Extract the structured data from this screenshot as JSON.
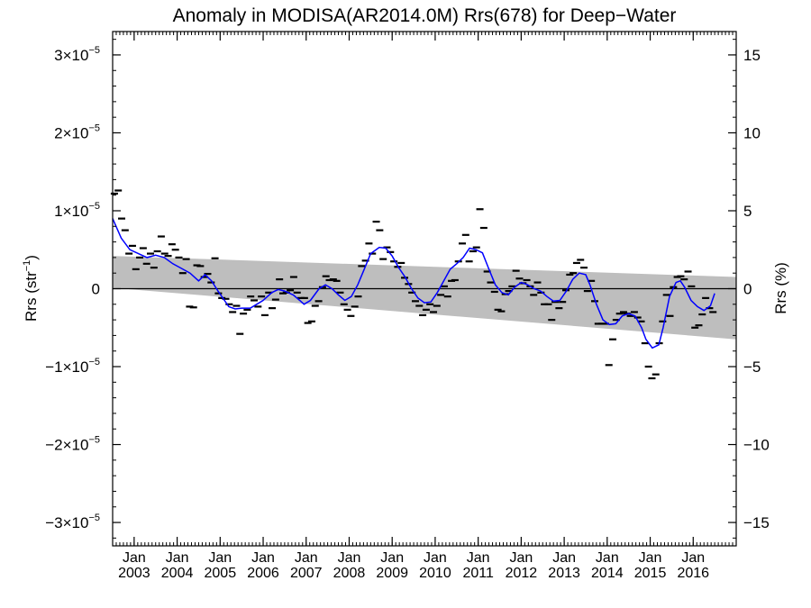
{
  "chart_data": {
    "type": "line",
    "title": "Anomaly in MODISA(AR2014.0M) Rrs(678) for Deep−Water",
    "ylabel": "Rrs (str",
    "ylabel_sup": "−1",
    "ylabel_suffix": ")",
    "y2label": "Rrs (%)",
    "xlim": [
      2002.5,
      2017.0
    ],
    "ylim": [
      -3.3e-05,
      3.3e-05
    ],
    "y2lim": [
      -16.5,
      16.5
    ],
    "y_ticks": [
      {
        "value": 3e-05,
        "mant": "3×10",
        "exp": "−5"
      },
      {
        "value": 2e-05,
        "mant": "2×10",
        "exp": "−5"
      },
      {
        "value": 1e-05,
        "mant": "1×10",
        "exp": "−5"
      },
      {
        "value": 0,
        "mant": "0",
        "exp": ""
      },
      {
        "value": -1e-05,
        "mant": "−1×10",
        "exp": "−5"
      },
      {
        "value": -2e-05,
        "mant": "−2×10",
        "exp": "−5"
      },
      {
        "value": -3e-05,
        "mant": "−3×10",
        "exp": "−5"
      }
    ],
    "y2_ticks": [
      {
        "value": 15,
        "label": "15"
      },
      {
        "value": 10,
        "label": "10"
      },
      {
        "value": 5,
        "label": "5"
      },
      {
        "value": 0,
        "label": "0"
      },
      {
        "value": -5,
        "label": "−5"
      },
      {
        "value": -10,
        "label": "−10"
      },
      {
        "value": -15,
        "label": "−15"
      }
    ],
    "x_ticks": [
      {
        "value": 2003.0,
        "month": "Jan",
        "year": "2003"
      },
      {
        "value": 2004.0,
        "month": "Jan",
        "year": "2004"
      },
      {
        "value": 2005.0,
        "month": "Jan",
        "year": "2005"
      },
      {
        "value": 2006.0,
        "month": "Jan",
        "year": "2006"
      },
      {
        "value": 2007.0,
        "month": "Jan",
        "year": "2007"
      },
      {
        "value": 2008.0,
        "month": "Jan",
        "year": "2008"
      },
      {
        "value": 2009.0,
        "month": "Jan",
        "year": "2009"
      },
      {
        "value": 2010.0,
        "month": "Jan",
        "year": "2010"
      },
      {
        "value": 2011.0,
        "month": "Jan",
        "year": "2011"
      },
      {
        "value": 2012.0,
        "month": "Jan",
        "year": "2012"
      },
      {
        "value": 2013.0,
        "month": "Jan",
        "year": "2013"
      },
      {
        "value": 2014.0,
        "month": "Jan",
        "year": "2014"
      },
      {
        "value": 2015.0,
        "month": "Jan",
        "year": "2015"
      },
      {
        "value": 2016.0,
        "month": "Jan",
        "year": "2016"
      }
    ],
    "zero_line": 0,
    "band": {
      "x": [
        2002.5,
        2017.0
      ],
      "upper": [
        4.2e-06,
        1.5e-06
      ],
      "lower": [
        1e-07,
        -6.5e-06
      ],
      "color": "#bebebe"
    },
    "series": [
      {
        "type": "scatter",
        "color": "#000000",
        "points": [
          [
            2002.54,
            12.2
          ],
          [
            2002.63,
            12.6
          ],
          [
            2002.71,
            9.0
          ],
          [
            2002.79,
            7.5
          ],
          [
            2002.88,
            4.5
          ],
          [
            2002.96,
            5.5
          ],
          [
            2003.04,
            2.5
          ],
          [
            2003.13,
            4.0
          ],
          [
            2003.21,
            5.2
          ],
          [
            2003.29,
            3.2
          ],
          [
            2003.38,
            4.5
          ],
          [
            2003.46,
            2.7
          ],
          [
            2003.54,
            4.8
          ],
          [
            2003.63,
            6.7
          ],
          [
            2003.71,
            4.5
          ],
          [
            2003.79,
            4.2
          ],
          [
            2003.88,
            5.7
          ],
          [
            2003.96,
            5.0
          ],
          [
            2004.04,
            4.0
          ],
          [
            2004.13,
            2.0
          ],
          [
            2004.21,
            3.8
          ],
          [
            2004.29,
            -2.3
          ],
          [
            2004.38,
            -2.4
          ],
          [
            2004.46,
            3.0
          ],
          [
            2004.54,
            2.9
          ],
          [
            2004.63,
            1.5
          ],
          [
            2004.71,
            1.9
          ],
          [
            2004.79,
            0.8
          ],
          [
            2004.88,
            3.9
          ],
          [
            2004.96,
            -0.6
          ],
          [
            2005.04,
            -1.2
          ],
          [
            2005.13,
            -1.3
          ],
          [
            2005.21,
            -2.0
          ],
          [
            2005.29,
            -3.0
          ],
          [
            2005.38,
            -2.2
          ],
          [
            2005.46,
            -5.8
          ],
          [
            2005.54,
            -3.2
          ],
          [
            2005.63,
            -2.7
          ],
          [
            2005.71,
            -1.0
          ],
          [
            2005.79,
            -1.5
          ],
          [
            2005.88,
            -2.3
          ],
          [
            2005.96,
            -1.0
          ],
          [
            2006.04,
            -3.4
          ],
          [
            2006.13,
            -0.5
          ],
          [
            2006.21,
            -2.5
          ],
          [
            2006.29,
            -1.4
          ],
          [
            2006.38,
            1.2
          ],
          [
            2006.46,
            -0.6
          ],
          [
            2006.54,
            -0.5
          ],
          [
            2006.63,
            -0.2
          ],
          [
            2006.71,
            1.5
          ],
          [
            2006.79,
            -0.5
          ],
          [
            2006.88,
            -1.2
          ],
          [
            2006.96,
            -1.2
          ],
          [
            2007.04,
            -4.4
          ],
          [
            2007.13,
            -4.2
          ],
          [
            2007.21,
            -2.2
          ],
          [
            2007.29,
            -1.6
          ],
          [
            2007.38,
            0.2
          ],
          [
            2007.46,
            1.6
          ],
          [
            2007.54,
            1.1
          ],
          [
            2007.63,
            1.2
          ],
          [
            2007.71,
            1.0
          ],
          [
            2007.79,
            -0.5
          ],
          [
            2007.88,
            -2.0
          ],
          [
            2007.96,
            -2.7
          ],
          [
            2008.04,
            -3.5
          ],
          [
            2008.13,
            -2.3
          ],
          [
            2008.21,
            -1.0
          ],
          [
            2008.29,
            2.9
          ],
          [
            2008.38,
            3.6
          ],
          [
            2008.46,
            5.8
          ],
          [
            2008.54,
            4.5
          ],
          [
            2008.63,
            8.6
          ],
          [
            2008.71,
            7.5
          ],
          [
            2008.79,
            3.8
          ],
          [
            2008.88,
            5.3
          ],
          [
            2008.96,
            4.7
          ],
          [
            2009.04,
            3.5
          ],
          [
            2009.13,
            2.8
          ],
          [
            2009.21,
            3.3
          ],
          [
            2009.29,
            1.4
          ],
          [
            2009.38,
            0.6
          ],
          [
            2009.46,
            -0.5
          ],
          [
            2009.54,
            -1.6
          ],
          [
            2009.63,
            -2.2
          ],
          [
            2009.71,
            -3.4
          ],
          [
            2009.79,
            -2.7
          ],
          [
            2009.88,
            -2.0
          ],
          [
            2009.96,
            -3.0
          ],
          [
            2010.04,
            -2.2
          ],
          [
            2010.13,
            -0.8
          ],
          [
            2010.21,
            0.3
          ],
          [
            2010.29,
            -1.0
          ],
          [
            2010.38,
            1.0
          ],
          [
            2010.46,
            1.1
          ],
          [
            2010.54,
            3.5
          ],
          [
            2010.63,
            5.8
          ],
          [
            2010.71,
            6.9
          ],
          [
            2010.79,
            3.5
          ],
          [
            2010.88,
            4.8
          ],
          [
            2010.96,
            5.3
          ],
          [
            2011.04,
            10.2
          ],
          [
            2011.13,
            7.8
          ],
          [
            2011.21,
            2.2
          ],
          [
            2011.29,
            0.8
          ],
          [
            2011.38,
            -0.4
          ],
          [
            2011.46,
            -2.7
          ],
          [
            2011.54,
            -2.9
          ],
          [
            2011.63,
            -0.7
          ],
          [
            2011.71,
            -0.3
          ],
          [
            2011.79,
            0.3
          ],
          [
            2011.88,
            2.3
          ],
          [
            2011.96,
            1.3
          ],
          [
            2012.04,
            0.7
          ],
          [
            2012.13,
            1.1
          ],
          [
            2012.21,
            0.3
          ],
          [
            2012.29,
            -0.8
          ],
          [
            2012.38,
            0.8
          ],
          [
            2012.46,
            -0.5
          ],
          [
            2012.54,
            -2.0
          ],
          [
            2012.63,
            -2.0
          ],
          [
            2012.71,
            -4.0
          ],
          [
            2012.79,
            -1.7
          ],
          [
            2012.88,
            -2.5
          ],
          [
            2012.96,
            -1.7
          ],
          [
            2013.04,
            -0.2
          ],
          [
            2013.13,
            1.8
          ],
          [
            2013.21,
            2.0
          ],
          [
            2013.29,
            3.3
          ],
          [
            2013.38,
            3.7
          ],
          [
            2013.46,
            2.7
          ],
          [
            2013.54,
            -0.3
          ],
          [
            2013.63,
            1.0
          ],
          [
            2013.71,
            -1.6
          ],
          [
            2013.79,
            -4.5
          ],
          [
            2013.88,
            -4.5
          ],
          [
            2013.96,
            -4.5
          ],
          [
            2014.04,
            -9.8
          ],
          [
            2014.13,
            -6.5
          ],
          [
            2014.21,
            -4.0
          ],
          [
            2014.29,
            -3.2
          ],
          [
            2014.38,
            -3.0
          ],
          [
            2014.46,
            -3.2
          ],
          [
            2014.54,
            -3.5
          ],
          [
            2014.63,
            -3.0
          ],
          [
            2014.71,
            -3.7
          ],
          [
            2014.79,
            -4.2
          ],
          [
            2014.88,
            -7.0
          ],
          [
            2014.96,
            -10.0
          ],
          [
            2015.04,
            -11.5
          ],
          [
            2015.13,
            -11.0
          ],
          [
            2015.21,
            -7.0
          ],
          [
            2015.29,
            -4.2
          ],
          [
            2015.38,
            -0.8
          ],
          [
            2015.46,
            -3.5
          ],
          [
            2015.54,
            0.2
          ],
          [
            2015.63,
            1.5
          ],
          [
            2015.71,
            1.6
          ],
          [
            2015.79,
            1.2
          ],
          [
            2015.88,
            2.2
          ],
          [
            2015.96,
            0.3
          ],
          [
            2016.04,
            -5.0
          ],
          [
            2016.13,
            -4.7
          ],
          [
            2016.21,
            -3.3
          ],
          [
            2016.29,
            -1.2
          ],
          [
            2016.38,
            -2.5
          ],
          [
            2016.46,
            -3.0
          ]
        ]
      },
      {
        "type": "line",
        "color": "#0000ff",
        "points": [
          [
            2002.5,
            9.0
          ],
          [
            2002.7,
            6.5
          ],
          [
            2002.9,
            5.0
          ],
          [
            2003.1,
            4.5
          ],
          [
            2003.3,
            4.0
          ],
          [
            2003.5,
            4.3
          ],
          [
            2003.7,
            4.0
          ],
          [
            2003.9,
            3.2
          ],
          [
            2004.1,
            2.6
          ],
          [
            2004.3,
            2.0
          ],
          [
            2004.5,
            1.0
          ],
          [
            2004.65,
            1.8
          ],
          [
            2004.8,
            1.0
          ],
          [
            2004.95,
            -0.3
          ],
          [
            2005.1,
            -1.5
          ],
          [
            2005.2,
            -2.3
          ],
          [
            2005.35,
            -2.6
          ],
          [
            2005.5,
            -2.5
          ],
          [
            2005.7,
            -2.5
          ],
          [
            2005.85,
            -2.0
          ],
          [
            2006.0,
            -1.5
          ],
          [
            2006.2,
            -0.5
          ],
          [
            2006.35,
            -0.1
          ],
          [
            2006.5,
            -0.3
          ],
          [
            2006.7,
            -0.8
          ],
          [
            2006.85,
            -1.5
          ],
          [
            2006.95,
            -2.0
          ],
          [
            2007.1,
            -1.5
          ],
          [
            2007.3,
            0.0
          ],
          [
            2007.45,
            0.5
          ],
          [
            2007.6,
            0.0
          ],
          [
            2007.75,
            -0.8
          ],
          [
            2007.9,
            -1.5
          ],
          [
            2008.05,
            -1.0
          ],
          [
            2008.2,
            0.5
          ],
          [
            2008.35,
            2.5
          ],
          [
            2008.5,
            4.5
          ],
          [
            2008.7,
            5.3
          ],
          [
            2008.85,
            5.2
          ],
          [
            2009.0,
            4.2
          ],
          [
            2009.15,
            2.7
          ],
          [
            2009.3,
            1.5
          ],
          [
            2009.45,
            0.0
          ],
          [
            2009.6,
            -1.2
          ],
          [
            2009.75,
            -1.8
          ],
          [
            2009.9,
            -1.7
          ],
          [
            2010.05,
            -0.5
          ],
          [
            2010.2,
            1.0
          ],
          [
            2010.35,
            2.5
          ],
          [
            2010.5,
            3.2
          ],
          [
            2010.65,
            4.0
          ],
          [
            2010.8,
            5.2
          ],
          [
            2010.95,
            5.0
          ],
          [
            2011.1,
            4.6
          ],
          [
            2011.25,
            2.5
          ],
          [
            2011.4,
            0.5
          ],
          [
            2011.55,
            -0.5
          ],
          [
            2011.7,
            -0.8
          ],
          [
            2011.85,
            0.2
          ],
          [
            2012.0,
            0.8
          ],
          [
            2012.15,
            0.5
          ],
          [
            2012.3,
            0.0
          ],
          [
            2012.45,
            -0.3
          ],
          [
            2012.6,
            -1.0
          ],
          [
            2012.75,
            -1.6
          ],
          [
            2012.9,
            -1.5
          ],
          [
            2013.05,
            -0.3
          ],
          [
            2013.2,
            1.2
          ],
          [
            2013.35,
            2.0
          ],
          [
            2013.5,
            1.8
          ],
          [
            2013.6,
            0.5
          ],
          [
            2013.75,
            -2.0
          ],
          [
            2013.9,
            -4.0
          ],
          [
            2014.05,
            -4.6
          ],
          [
            2014.2,
            -4.5
          ],
          [
            2014.35,
            -3.5
          ],
          [
            2014.5,
            -3.2
          ],
          [
            2014.65,
            -3.5
          ],
          [
            2014.8,
            -5.0
          ],
          [
            2014.9,
            -6.5
          ],
          [
            2015.05,
            -7.6
          ],
          [
            2015.2,
            -7.2
          ],
          [
            2015.3,
            -5.0
          ],
          [
            2015.45,
            -1.0
          ],
          [
            2015.6,
            0.8
          ],
          [
            2015.7,
            1.0
          ],
          [
            2015.8,
            0.2
          ],
          [
            2015.95,
            -1.5
          ],
          [
            2016.1,
            -2.3
          ],
          [
            2016.25,
            -2.8
          ],
          [
            2016.4,
            -2.2
          ],
          [
            2016.5,
            -0.6
          ]
        ]
      }
    ]
  }
}
